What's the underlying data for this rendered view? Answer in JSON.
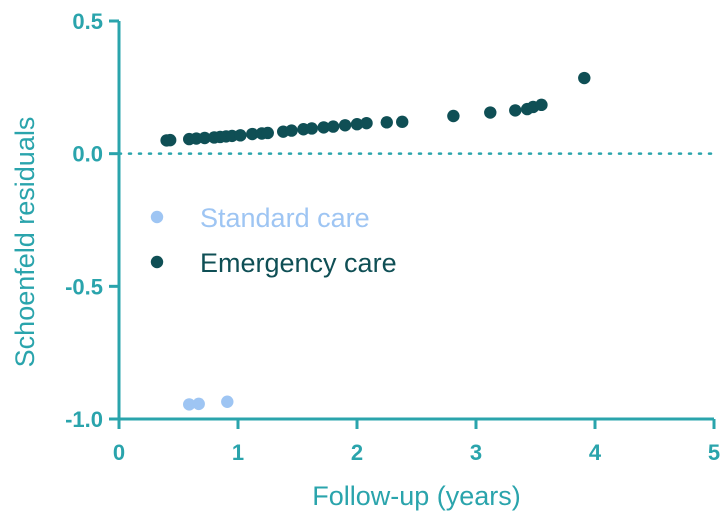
{
  "chart_data": {
    "type": "scatter",
    "xlabel": "Follow-up (years)",
    "ylabel": "Schoenfeld residuals",
    "xlim": [
      0,
      5
    ],
    "ylim": [
      -1.0,
      0.5
    ],
    "x_ticks": [
      0,
      1,
      2,
      3,
      4,
      5
    ],
    "x_tick_labels": [
      "0",
      "1",
      "2",
      "3",
      "4",
      "5"
    ],
    "y_ticks": [
      -1.0,
      -0.5,
      0.0,
      0.5
    ],
    "y_tick_labels": [
      "-1.0",
      "-0.5",
      "0.0",
      "0.5"
    ],
    "reference_line": {
      "y": 0.0,
      "style": "dotted"
    },
    "grid": false,
    "legend_position": "center-left",
    "axis_color": "#2aa4ac",
    "series": [
      {
        "name": "Standard care",
        "color": "#9ec5f3",
        "points": [
          [
            0.59,
            -0.945
          ],
          [
            0.67,
            -0.943
          ],
          [
            0.91,
            -0.935
          ]
        ]
      },
      {
        "name": "Emergency care",
        "color": "#0f4f55",
        "points": [
          [
            0.4,
            0.05
          ],
          [
            0.43,
            0.051
          ],
          [
            0.59,
            0.055
          ],
          [
            0.65,
            0.057
          ],
          [
            0.72,
            0.059
          ],
          [
            0.8,
            0.061
          ],
          [
            0.85,
            0.063
          ],
          [
            0.9,
            0.065
          ],
          [
            0.95,
            0.067
          ],
          [
            1.02,
            0.069
          ],
          [
            1.12,
            0.074
          ],
          [
            1.2,
            0.076
          ],
          [
            1.25,
            0.078
          ],
          [
            1.38,
            0.083
          ],
          [
            1.45,
            0.087
          ],
          [
            1.55,
            0.092
          ],
          [
            1.62,
            0.095
          ],
          [
            1.72,
            0.099
          ],
          [
            1.8,
            0.102
          ],
          [
            1.9,
            0.107
          ],
          [
            2.0,
            0.111
          ],
          [
            2.08,
            0.115
          ],
          [
            2.25,
            0.118
          ],
          [
            2.38,
            0.12
          ],
          [
            2.81,
            0.142
          ],
          [
            3.12,
            0.155
          ],
          [
            3.33,
            0.163
          ],
          [
            3.43,
            0.168
          ],
          [
            3.48,
            0.176
          ],
          [
            3.55,
            0.184
          ],
          [
            3.91,
            0.285
          ]
        ]
      }
    ]
  }
}
